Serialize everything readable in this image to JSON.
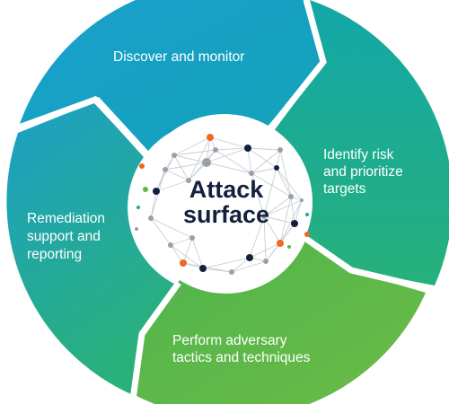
{
  "center": {
    "line1": "Attack",
    "line2": "surface"
  },
  "segments": [
    {
      "id": "discover",
      "lines": [
        "Discover and monitor"
      ]
    },
    {
      "id": "identify",
      "lines": [
        "Identify risk",
        "and prioritize",
        "targets"
      ]
    },
    {
      "id": "perform",
      "lines": [
        "Perform adversary",
        "tactics and techniques"
      ]
    },
    {
      "id": "remediation",
      "lines": [
        "Remediation",
        "support and",
        "reporting"
      ]
    }
  ],
  "colors": {
    "blue": "#1f9dc9",
    "teal": "#1aa99e",
    "green": "#5cb84a",
    "navy": "#14213d",
    "orange": "#f26522",
    "gray": "#9aa0a6"
  }
}
